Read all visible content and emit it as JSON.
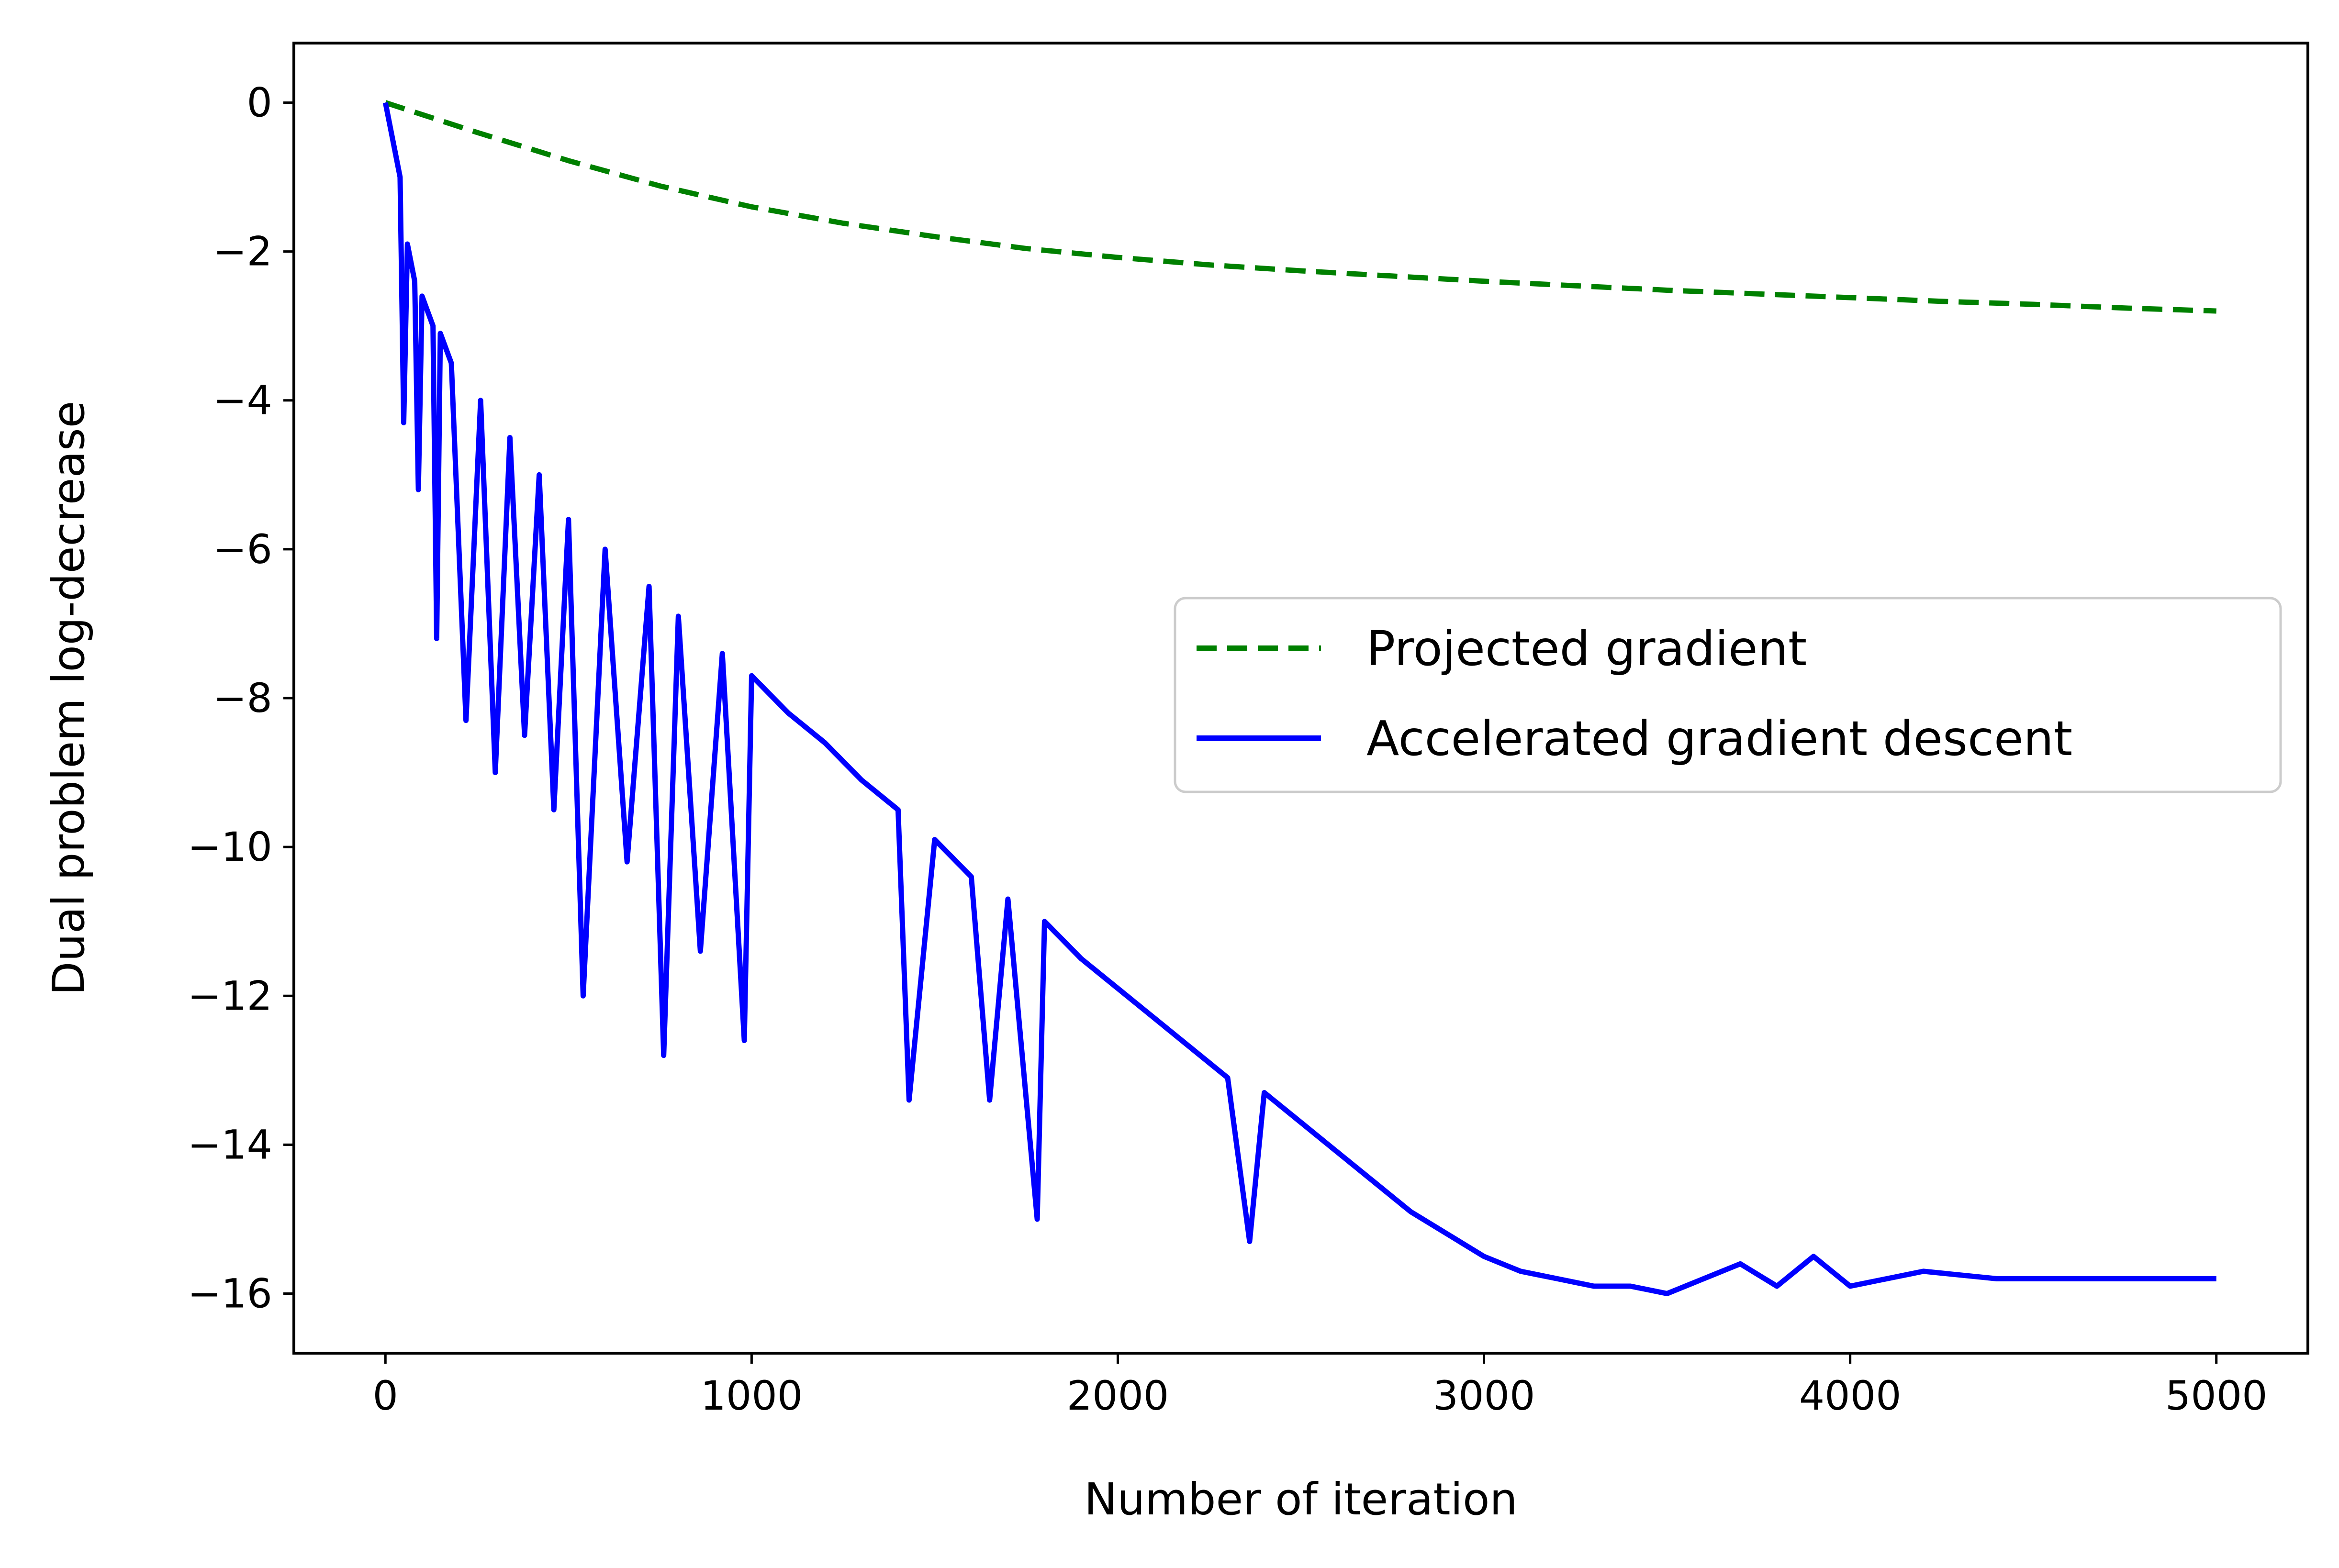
{
  "chart_data": {
    "type": "line",
    "xlabel": "Number of iteration",
    "ylabel": "Dual problem log-decrease",
    "xlim": [
      -250,
      5250
    ],
    "ylim": [
      -16.8,
      0.8
    ],
    "x_ticks": [
      0,
      1000,
      2000,
      3000,
      4000,
      5000
    ],
    "y_ticks": [
      0,
      -2,
      -4,
      -6,
      -8,
      -10,
      -12,
      -14,
      -16
    ],
    "x_tick_labels": [
      "0",
      "1000",
      "2000",
      "3000",
      "4000",
      "5000"
    ],
    "y_tick_labels": [
      "0",
      "−2",
      "−4",
      "−6",
      "−8",
      "−10",
      "−12",
      "−14",
      "−16"
    ],
    "grid": false,
    "legend_position": "center-right",
    "series": [
      {
        "name": "Projected gradient",
        "color": "#008000",
        "style": "dashed",
        "x": [
          0,
          250,
          500,
          750,
          1000,
          1250,
          1500,
          1750,
          2000,
          2250,
          2500,
          2750,
          3000,
          3250,
          3500,
          3750,
          4000,
          4250,
          4500,
          4750,
          5000
        ],
        "y": [
          0,
          -0.4,
          -0.78,
          -1.12,
          -1.4,
          -1.62,
          -1.8,
          -1.96,
          -2.08,
          -2.18,
          -2.26,
          -2.33,
          -2.4,
          -2.46,
          -2.52,
          -2.57,
          -2.62,
          -2.67,
          -2.71,
          -2.76,
          -2.8
        ]
      },
      {
        "name": "Accelerated gradient descent",
        "color": "#0000ff",
        "style": "solid",
        "x": [
          0,
          40,
          50,
          60,
          80,
          90,
          100,
          130,
          140,
          150,
          180,
          220,
          260,
          300,
          340,
          380,
          420,
          460,
          500,
          540,
          600,
          660,
          720,
          760,
          800,
          860,
          920,
          980,
          1000,
          1100,
          1200,
          1300,
          1400,
          1430,
          1500,
          1600,
          1650,
          1700,
          1780,
          1800,
          1900,
          2000,
          2100,
          2200,
          2300,
          2360,
          2400,
          2500,
          2600,
          2700,
          2800,
          2900,
          3000,
          3100,
          3200,
          3300,
          3400,
          3500,
          3600,
          3700,
          3800,
          3900,
          4000,
          4200,
          4400,
          4600,
          4800,
          5000
        ],
        "y": [
          0,
          -1.0,
          -4.3,
          -1.9,
          -2.4,
          -5.2,
          -2.6,
          -3.0,
          -7.2,
          -3.1,
          -3.5,
          -8.3,
          -4.0,
          -9.0,
          -4.5,
          -8.5,
          -5.0,
          -9.5,
          -5.6,
          -12.0,
          -6.0,
          -10.2,
          -6.5,
          -12.8,
          -6.9,
          -11.4,
          -7.4,
          -12.6,
          -7.7,
          -8.2,
          -8.6,
          -9.1,
          -9.5,
          -13.4,
          -9.9,
          -10.4,
          -13.4,
          -10.7,
          -15.0,
          -11.0,
          -11.5,
          -11.9,
          -12.3,
          -12.7,
          -13.1,
          -15.3,
          -13.3,
          -13.7,
          -14.1,
          -14.5,
          -14.9,
          -15.2,
          -15.5,
          -15.7,
          -15.8,
          -15.9,
          -15.9,
          -16.0,
          -15.8,
          -15.6,
          -15.9,
          -15.5,
          -15.9,
          -15.7,
          -15.8,
          -15.8,
          -15.8,
          -15.8
        ]
      }
    ]
  }
}
